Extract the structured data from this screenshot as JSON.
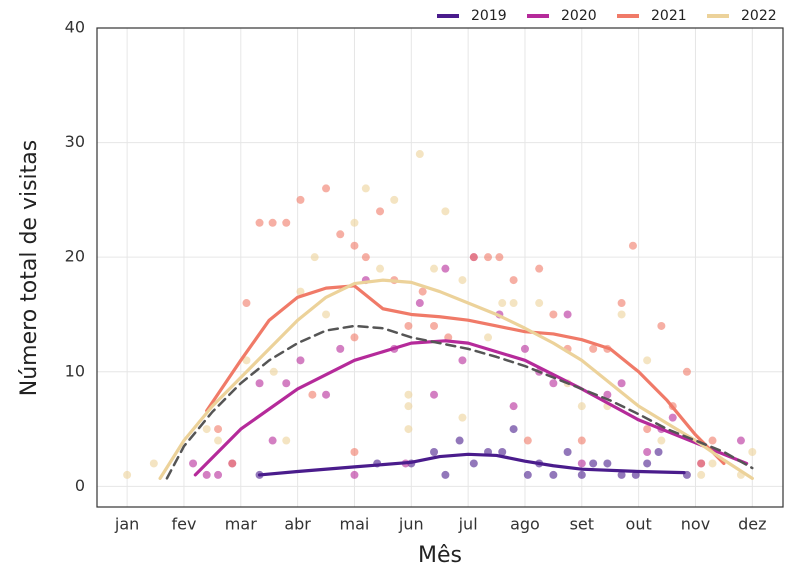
{
  "chart_data": {
    "type": "scatter",
    "x_label": "Mês",
    "y_label": "Número total de visitas",
    "xlim": [
      0.47,
      12.54
    ],
    "ylim": [
      -1.8,
      40
    ],
    "xticks": [
      {
        "value": 1,
        "label": "jan"
      },
      {
        "value": 2,
        "label": "fev"
      },
      {
        "value": 3,
        "label": "mar"
      },
      {
        "value": 4,
        "label": "abr"
      },
      {
        "value": 5,
        "label": "mai"
      },
      {
        "value": 6,
        "label": "jun"
      },
      {
        "value": 7,
        "label": "jul"
      },
      {
        "value": 8,
        "label": "ago"
      },
      {
        "value": 9,
        "label": "set"
      },
      {
        "value": 10,
        "label": "out"
      },
      {
        "value": 11,
        "label": "nov"
      },
      {
        "value": 12,
        "label": "dez"
      }
    ],
    "yticks": [
      0,
      10,
      20,
      30,
      40
    ],
    "grid": true,
    "legend": "top-right",
    "series": [
      {
        "name": "2019",
        "color": "#4a1c8c",
        "x": [
          3.33,
          5.4,
          6.0,
          6.4,
          6.6,
          6.85,
          7.1,
          7.35,
          7.6,
          7.8,
          8.05,
          8.25,
          8.5,
          8.75,
          9.0,
          9.2,
          9.45,
          9.7,
          9.95,
          10.15,
          10.35,
          10.85
        ],
        "values": [
          1,
          2,
          2,
          3,
          1,
          4,
          2,
          3,
          3,
          5,
          1,
          2,
          1,
          3,
          1,
          2,
          2,
          1,
          1,
          2,
          3,
          1
        ],
        "smooth_x": [
          3.33,
          4,
          5,
          6,
          6.5,
          7,
          7.5,
          8,
          8.5,
          9,
          10,
          10.8
        ],
        "smooth_values": [
          1,
          1.3,
          1.7,
          2.1,
          2.6,
          2.8,
          2.7,
          2.2,
          1.8,
          1.5,
          1.3,
          1.2
        ]
      },
      {
        "name": "2020",
        "color": "#b52a9a",
        "x": [
          2.16,
          2.4,
          2.6,
          2.85,
          3.33,
          3.56,
          3.8,
          4.05,
          4.5,
          4.75,
          5.0,
          5.2,
          5.7,
          5.9,
          6.15,
          6.4,
          6.6,
          6.9,
          7.1,
          7.55,
          7.8,
          8.0,
          8.25,
          8.5,
          8.75,
          9.0,
          9.45,
          9.7,
          10.15,
          10.4,
          10.6,
          11.1,
          11.8
        ],
        "values": [
          2,
          1,
          1,
          2,
          9,
          4,
          9,
          11,
          8,
          12,
          1,
          18,
          12,
          2,
          16,
          8,
          19,
          11,
          20,
          15,
          7,
          12,
          10,
          9,
          15,
          2,
          8,
          9,
          3,
          5,
          6,
          2,
          4
        ],
        "smooth_x": [
          2.2,
          3,
          4,
          5,
          6,
          6.6,
          7,
          8,
          9,
          10,
          11,
          11.9
        ],
        "smooth_values": [
          1,
          5,
          8.5,
          11,
          12.5,
          12.7,
          12.5,
          11,
          8.5,
          5.8,
          3.8,
          2
        ]
      },
      {
        "name": "2021",
        "color": "#f07a68",
        "x": [
          2.6,
          2.85,
          3.1,
          3.33,
          3.56,
          3.8,
          4.05,
          4.26,
          4.5,
          4.75,
          5.0,
          5.0,
          5.0,
          5.2,
          5.45,
          5.7,
          5.95,
          6.2,
          6.4,
          6.65,
          7.1,
          7.35,
          7.55,
          7.8,
          8.05,
          8.25,
          8.5,
          8.75,
          9.0,
          9.2,
          9.45,
          9.7,
          9.9,
          10.15,
          10.4,
          10.6,
          10.85,
          11.1,
          11.3
        ],
        "values": [
          5,
          2,
          16,
          23,
          23,
          23,
          25,
          8,
          26,
          22,
          21,
          13,
          3,
          20,
          24,
          18,
          14,
          17,
          14,
          13,
          20,
          20,
          20,
          18,
          4,
          19,
          15,
          12,
          4,
          12,
          12,
          16,
          21,
          5,
          14,
          7,
          10,
          2,
          4
        ],
        "smooth_x": [
          2.4,
          3,
          3.5,
          4,
          4.5,
          5,
          5.5,
          6,
          6.5,
          7,
          7.5,
          8,
          8.5,
          9,
          9.5,
          10,
          10.5,
          11,
          11.5
        ],
        "smooth_values": [
          6.6,
          11,
          14.5,
          16.5,
          17.3,
          17.5,
          15.5,
          15,
          14.8,
          14.5,
          14,
          13.5,
          13.3,
          12.8,
          12,
          10,
          7.5,
          4.5,
          2
        ]
      },
      {
        "name": "2022",
        "color": "#ecd29a",
        "x": [
          1.0,
          1.47,
          2.4,
          2.6,
          3.1,
          3.58,
          3.8,
          4.05,
          4.3,
          4.5,
          5.0,
          5.2,
          5.45,
          5.7,
          5.95,
          5.95,
          5.95,
          6.15,
          6.4,
          6.6,
          6.9,
          6.9,
          7.35,
          7.6,
          7.8,
          8.25,
          8.75,
          9.0,
          9.45,
          9.7,
          10.15,
          10.4,
          11.1,
          11.3,
          11.8,
          12.0
        ],
        "values": [
          1,
          2,
          5,
          4,
          11,
          10,
          4,
          17,
          20,
          15,
          23,
          26,
          19,
          25,
          8,
          7,
          5,
          29,
          19,
          24,
          6,
          18,
          13,
          16,
          16,
          16,
          9,
          7,
          7,
          15,
          11,
          4,
          1,
          2,
          1,
          3
        ],
        "smooth_x": [
          1.58,
          2,
          2.5,
          3,
          3.5,
          4,
          4.5,
          5,
          5.5,
          6,
          6.5,
          7,
          7.5,
          8,
          8.5,
          9,
          9.5,
          10,
          10.5,
          11,
          11.5,
          12
        ],
        "smooth_values": [
          0.7,
          4,
          7,
          9.5,
          12,
          14.5,
          16.5,
          17.7,
          18,
          17.8,
          17,
          16,
          15,
          13.8,
          12.5,
          11,
          9,
          7,
          5.5,
          4,
          2.3,
          0.7
        ]
      }
    ],
    "trend": {
      "color": "#555555",
      "dash": true,
      "x": [
        1.7,
        2,
        2.5,
        3,
        3.5,
        4,
        4.5,
        5,
        5.5,
        6,
        6.5,
        7,
        7.5,
        8,
        8.5,
        9,
        9.5,
        10,
        10.5,
        11,
        11.5,
        12
      ],
      "values": [
        0.7,
        3.5,
        6.5,
        9,
        11,
        12.5,
        13.6,
        14,
        13.8,
        13,
        12.5,
        12,
        11.3,
        10.5,
        9.5,
        8.5,
        7.5,
        6.3,
        5,
        4,
        3,
        1.6
      ]
    }
  }
}
